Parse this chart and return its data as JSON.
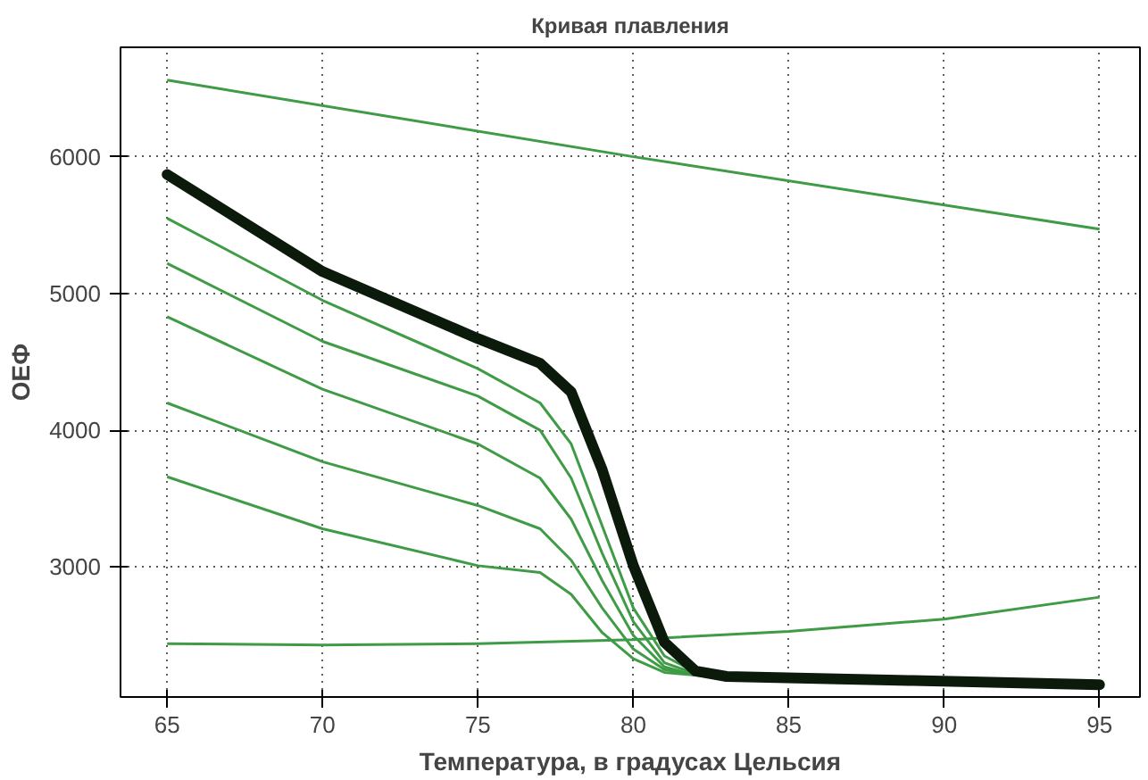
{
  "chart_data": {
    "type": "line",
    "title": "Кривая плавления",
    "xlabel": "Температура, в градусах Цельсия",
    "ylabel": "ОЕФ",
    "xlim": [
      63.5,
      96.3
    ],
    "ylim": [
      2050,
      6800
    ],
    "xticks": [
      65,
      70,
      75,
      80,
      85,
      90,
      95
    ],
    "yticks": [
      3000,
      4000,
      5000,
      6000
    ],
    "grid": true,
    "line_style": "solid",
    "marker": "none",
    "series": [
      {
        "color": "#3f9b45",
        "x": [
          65,
          80,
          95
        ],
        "values": [
          6560,
          6000,
          5470
        ]
      },
      {
        "color": "#3f9b45",
        "x": [
          65,
          70,
          75,
          80,
          85,
          90,
          95
        ],
        "values": [
          2440,
          2430,
          2440,
          2470,
          2530,
          2620,
          2780
        ]
      },
      {
        "color": "#3f9b45",
        "x": [
          65,
          70,
          75,
          77,
          78,
          79,
          80,
          81,
          82,
          83
        ],
        "values": [
          5550,
          4950,
          4450,
          4200,
          3900,
          3300,
          2700,
          2350,
          2230,
          2200
        ]
      },
      {
        "color": "#3f9b45",
        "x": [
          65,
          70,
          75,
          77,
          78,
          79,
          80,
          81,
          82,
          83
        ],
        "values": [
          5220,
          4650,
          4250,
          4000,
          3650,
          3100,
          2600,
          2300,
          2220,
          2200
        ]
      },
      {
        "color": "#3f9b45",
        "x": [
          65,
          70,
          75,
          77,
          78,
          79,
          80,
          81,
          82,
          83
        ],
        "values": [
          4830,
          4300,
          3900,
          3650,
          3350,
          2900,
          2500,
          2270,
          2210,
          2200
        ]
      },
      {
        "color": "#3f9b45",
        "x": [
          65,
          70,
          75,
          77,
          78,
          79,
          80,
          81,
          82,
          83
        ],
        "values": [
          4200,
          3770,
          3450,
          3280,
          3050,
          2700,
          2400,
          2250,
          2210,
          2200
        ]
      },
      {
        "color": "#3f9b45",
        "x": [
          65,
          70,
          75,
          77,
          78,
          79,
          80,
          81,
          82,
          83
        ],
        "values": [
          3660,
          3280,
          3010,
          2960,
          2800,
          2520,
          2330,
          2230,
          2210,
          2200
        ]
      },
      {
        "color": "#0b1a0b",
        "x": [
          65,
          70,
          75,
          77,
          78,
          79,
          80,
          81,
          82,
          83,
          89,
          95
        ],
        "values": [
          5870,
          5160,
          4670,
          4490,
          4280,
          3710,
          3010,
          2450,
          2240,
          2200,
          2170,
          2140
        ]
      }
    ]
  }
}
